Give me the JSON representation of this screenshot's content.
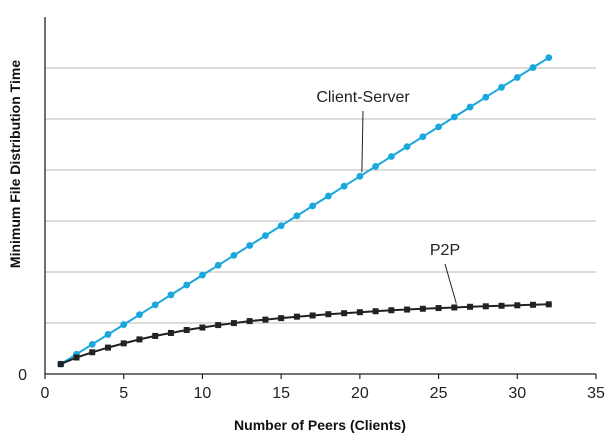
{
  "chart_data": {
    "type": "line",
    "title": "",
    "xlabel": "Number of Peers (Clients)",
    "ylabel": "Minimum File Distribution Time",
    "xlim": [
      0,
      35
    ],
    "ylim": [
      0,
      35
    ],
    "x_ticks": [
      "0",
      "5",
      "10",
      "15",
      "20",
      "25",
      "30",
      "35"
    ],
    "y_ticks": [
      "0"
    ],
    "grid": "horizontal",
    "x": [
      1,
      2,
      3,
      4,
      5,
      6,
      7,
      8,
      9,
      10,
      11,
      12,
      13,
      14,
      15,
      16,
      17,
      18,
      19,
      20,
      21,
      22,
      23,
      24,
      25,
      26,
      27,
      28,
      29,
      30,
      31,
      32
    ],
    "series": [
      {
        "name": "Client-Server",
        "color": "#1aa7dc",
        "marker": "circle",
        "values": [
          1,
          2,
          3,
          4,
          5,
          6,
          7,
          8,
          9,
          10,
          11,
          12,
          13,
          14,
          15,
          16,
          17,
          18,
          19,
          20,
          21,
          22,
          23,
          24,
          25,
          26,
          27,
          28,
          29,
          30,
          31,
          32
        ]
      },
      {
        "name": "P2P",
        "color": "#222222",
        "marker": "square",
        "values": [
          1.0,
          1.67,
          2.2,
          2.67,
          3.1,
          3.5,
          3.85,
          4.15,
          4.45,
          4.7,
          4.95,
          5.15,
          5.35,
          5.5,
          5.65,
          5.8,
          5.92,
          6.05,
          6.15,
          6.25,
          6.35,
          6.45,
          6.52,
          6.6,
          6.67,
          6.73,
          6.8,
          6.85,
          6.9,
          6.95,
          7.0,
          7.05
        ]
      }
    ]
  }
}
